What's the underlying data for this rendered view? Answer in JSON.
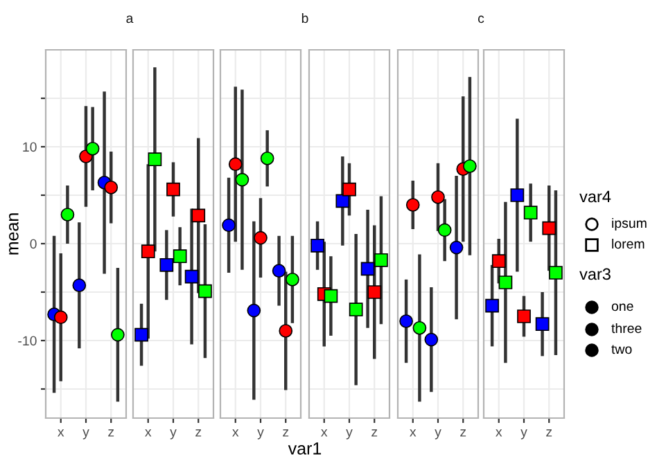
{
  "chart_data": [
    {
      "type": "scatter",
      "title": "a",
      "ylabel": "mean",
      "categories": [
        "x",
        "y",
        "z"
      ],
      "marker": "circle",
      "grid": true,
      "ylim": [
        -18,
        20
      ],
      "yticks": [
        {
          "value": -15,
          "label": null
        },
        -10,
        {
          "value": -5,
          "label": null
        },
        0,
        {
          "value": 5,
          "label": null
        },
        10,
        {
          "value": 15,
          "label": null
        }
      ],
      "series": [
        {
          "color": "#0000ff",
          "values": [
            -7.3,
            -4.3,
            6.3
          ],
          "errors": [
            8.1,
            6.5,
            9.4
          ]
        },
        {
          "color": "#ff0000",
          "values": [
            -7.6,
            9.0,
            5.8
          ],
          "errors": [
            6.6,
            5.2,
            3.7
          ]
        },
        {
          "color": "#00ff00",
          "values": [
            3.0,
            9.8,
            -9.4
          ],
          "errors": [
            3.0,
            4.3,
            6.9
          ]
        }
      ]
    },
    {
      "type": "scatter",
      "categories": [
        "x",
        "y",
        "z"
      ],
      "marker": "square",
      "grid": true,
      "tick_labels": "x",
      "ylim": [
        -18,
        20
      ],
      "yticks": [
        {
          "value": -15,
          "label": null
        },
        -10,
        {
          "value": -5,
          "label": null
        },
        0,
        {
          "value": 5,
          "label": null
        },
        10,
        {
          "value": 15,
          "label": null
        }
      ],
      "series": [
        {
          "color": "#0000ff",
          "values": [
            -9.4,
            -2.2,
            -3.4
          ],
          "errors": [
            3.2,
            3.6,
            7.0
          ]
        },
        {
          "color": "#ff0000",
          "values": [
            -0.8,
            5.6,
            2.9
          ],
          "errors": [
            9.0,
            2.8,
            8.0
          ]
        },
        {
          "color": "#00ff00",
          "values": [
            8.7,
            -1.3,
            -4.9
          ],
          "errors": [
            9.5,
            3.0,
            6.9
          ]
        }
      ]
    },
    {
      "type": "scatter",
      "title": "b",
      "xlabel": "var1",
      "categories": [
        "x",
        "y",
        "z"
      ],
      "marker": "circle",
      "grid": true,
      "tick_labels": "x",
      "ylim": [
        -18,
        20
      ],
      "yticks": [
        {
          "value": -15,
          "label": null
        },
        -10,
        {
          "value": -5,
          "label": null
        },
        0,
        {
          "value": 5,
          "label": null
        },
        10,
        {
          "value": 15,
          "label": null
        }
      ],
      "series": [
        {
          "color": "#0000ff",
          "values": [
            1.9,
            -6.9,
            -2.8
          ],
          "errors": [
            4.9,
            9.2,
            3.6
          ]
        },
        {
          "color": "#ff0000",
          "values": [
            8.2,
            0.6,
            -9.0
          ],
          "errors": [
            8.0,
            4.1,
            6.1
          ]
        },
        {
          "color": "#00ff00",
          "values": [
            6.6,
            8.8,
            -3.7
          ],
          "errors": [
            9.3,
            2.9,
            4.5
          ]
        }
      ]
    },
    {
      "type": "scatter",
      "categories": [
        "x",
        "y",
        "z"
      ],
      "marker": "square",
      "grid": true,
      "tick_labels": "x",
      "ylim": [
        -18,
        20
      ],
      "yticks": [
        {
          "value": -15,
          "label": null
        },
        -10,
        {
          "value": -5,
          "label": null
        },
        0,
        {
          "value": 5,
          "label": null
        },
        10,
        {
          "value": 15,
          "label": null
        }
      ],
      "series": [
        {
          "color": "#0000ff",
          "values": [
            -0.2,
            4.4,
            -2.6
          ],
          "errors": [
            2.5,
            4.6,
            6.1
          ]
        },
        {
          "color": "#ff0000",
          "values": [
            -5.2,
            5.6,
            -5.0
          ],
          "errors": [
            5.4,
            2.7,
            6.9
          ]
        },
        {
          "color": "#00ff00",
          "values": [
            -5.4,
            -6.8,
            -1.7
          ],
          "errors": [
            4.1,
            7.8,
            6.6
          ]
        }
      ]
    },
    {
      "type": "scatter",
      "title": "c",
      "categories": [
        "x",
        "y",
        "z"
      ],
      "marker": "circle",
      "grid": true,
      "tick_labels": "x",
      "ylim": [
        -18,
        20
      ],
      "yticks": [
        {
          "value": -15,
          "label": null
        },
        -10,
        {
          "value": -5,
          "label": null
        },
        0,
        {
          "value": 5,
          "label": null
        },
        10,
        {
          "value": 15,
          "label": null
        }
      ],
      "series": [
        {
          "color": "#0000ff",
          "values": [
            -8.0,
            -9.9,
            -0.4
          ],
          "errors": [
            4.3,
            5.4,
            7.4
          ]
        },
        {
          "color": "#ff0000",
          "values": [
            4.0,
            4.8,
            7.7
          ],
          "errors": [
            2.5,
            3.5,
            7.5
          ]
        },
        {
          "color": "#00ff00",
          "values": [
            -8.7,
            1.4,
            8.0
          ],
          "errors": [
            7.6,
            3.2,
            9.2
          ]
        }
      ]
    },
    {
      "type": "scatter",
      "categories": [
        "x",
        "y",
        "z"
      ],
      "marker": "square",
      "grid": true,
      "tick_labels": "x",
      "ylim": [
        -18,
        20
      ],
      "yticks": [
        {
          "value": -15,
          "label": null
        },
        -10,
        {
          "value": -5,
          "label": null
        },
        0,
        {
          "value": 5,
          "label": null
        },
        10,
        {
          "value": 15,
          "label": null
        }
      ],
      "annotations": [
        "var4",
        "ipsum",
        "lorem",
        "var3",
        "one",
        "three",
        "two"
      ],
      "series": [
        {
          "color": "#0000ff",
          "values": [
            -6.4,
            5.0,
            -8.3
          ],
          "errors": [
            4.2,
            7.9,
            3.3
          ]
        },
        {
          "color": "#ff0000",
          "values": [
            -1.8,
            -7.5,
            1.6
          ],
          "errors": [
            2.3,
            2.1,
            4.4
          ]
        },
        {
          "color": "#00ff00",
          "values": [
            -4.0,
            3.2,
            -3.0
          ],
          "errors": [
            8.3,
            3.0,
            8.5
          ]
        }
      ]
    }
  ]
}
